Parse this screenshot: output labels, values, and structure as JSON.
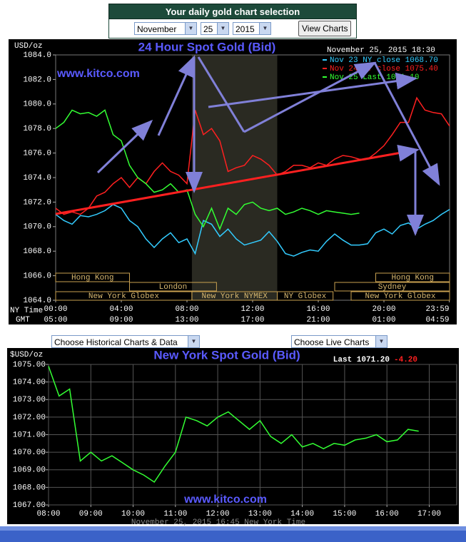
{
  "header": {
    "title": "Your daily gold chart selection",
    "month": "November",
    "day": "25",
    "year": "2015",
    "button": "View Charts"
  },
  "links": {
    "historical": "Choose Historical Charts & Data",
    "live": "Choose Live Charts"
  },
  "chart_data": [
    {
      "type": "line",
      "title": "24 Hour Spot Gold (Bid)",
      "watermark": "www.kitco.com",
      "timestamp": "November 25, 2015 18:30",
      "y_label": "USD/oz",
      "x_label": "NY Time",
      "x2_label": "GMT",
      "legend": "upper right",
      "grid": false,
      "background": "#000000",
      "x": [
        0,
        0.5,
        1,
        1.5,
        2,
        2.5,
        3,
        3.5,
        4,
        4.5,
        5,
        5.5,
        6,
        6.5,
        7,
        7.5,
        8,
        8.5,
        9,
        9.5,
        10,
        10.5,
        11,
        11.5,
        12,
        12.5,
        13,
        13.5,
        14,
        14.5,
        15,
        15.5,
        16,
        16.5,
        17,
        17.5,
        18,
        18.5,
        19,
        19.5,
        20,
        20.5,
        21,
        21.5,
        22,
        22.5,
        23,
        23.5,
        24
      ],
      "series": [
        {
          "name": "Nov 23 NY close 1068.70",
          "color": "#33ccff",
          "values": [
            1071.0,
            1070.5,
            1070.2,
            1070.9,
            1070.8,
            1071.0,
            1071.3,
            1071.8,
            1071.5,
            1070.5,
            1070.0,
            1069.0,
            1068.3,
            1069.0,
            1069.5,
            1068.7,
            1069.0,
            1067.8,
            1070.5,
            1070.2,
            1069.2,
            1069.8,
            1069.0,
            1068.5,
            1068.7,
            1068.9,
            1069.6,
            1068.8,
            1067.8,
            1067.6,
            1067.9,
            1068.1,
            1068.0,
            1068.8,
            1069.4,
            1068.9,
            1068.5,
            1068.5,
            1068.6,
            1069.5,
            1069.8,
            1069.4,
            1070.1,
            1070.3,
            1069.8,
            1070.2,
            1070.5,
            1071.0,
            1071.4
          ]
        },
        {
          "name": "Nov 24 NY close 1075.40",
          "color": "#ff2020",
          "values": [
            1071.5,
            1071.0,
            1071.2,
            1071.0,
            1071.5,
            1072.5,
            1072.8,
            1073.5,
            1074.0,
            1073.2,
            1074.0,
            1073.5,
            1074.5,
            1075.2,
            1074.5,
            1074.2,
            1073.5,
            1079.5,
            1077.5,
            1078.0,
            1077.0,
            1074.5,
            1074.8,
            1075.0,
            1075.8,
            1075.5,
            1075.0,
            1074.2,
            1074.5,
            1075.0,
            1075.0,
            1074.8,
            1075.2,
            1075.0,
            1075.5,
            1075.8,
            1075.7,
            1075.5,
            1075.5,
            1076.0,
            1076.6,
            1077.5,
            1078.5,
            1078.5,
            1080.5,
            1079.5,
            1079.3,
            1079.2,
            1078.2
          ]
        },
        {
          "name": "Nov 25 Last 1071.10",
          "color": "#33ff33",
          "values": [
            1078.0,
            1078.5,
            1079.5,
            1079.2,
            1079.3,
            1079.0,
            1079.5,
            1077.5,
            1077.0,
            1075.0,
            1074.0,
            1073.5,
            1072.8,
            1073.0,
            1073.5,
            1072.8,
            1073.0,
            1071.0,
            1070.0,
            1071.5,
            1069.8,
            1071.5,
            1071.0,
            1071.8,
            1072.0,
            1071.5,
            1071.3,
            1071.5,
            1071.0,
            1071.2,
            1071.5,
            1071.3,
            1071.0,
            1071.3,
            1071.2,
            1071.1,
            1071.0,
            1071.1,
            null,
            null,
            null,
            null,
            null,
            null,
            null,
            null,
            null,
            null,
            null
          ]
        }
      ],
      "xlim": [
        0,
        24
      ],
      "xticks": [
        {
          "value": 0,
          "label": "00:00"
        },
        {
          "value": 4,
          "label": "04:00"
        },
        {
          "value": 8,
          "label": "08:00"
        },
        {
          "value": 12,
          "label": "12:00"
        },
        {
          "value": 16,
          "label": "16:00"
        },
        {
          "value": 20,
          "label": "20:00"
        },
        {
          "value": 23.98,
          "label": "23:59"
        }
      ],
      "x2ticks": [
        {
          "value": 0,
          "label": "05:00"
        },
        {
          "value": 4,
          "label": "09:00"
        },
        {
          "value": 8,
          "label": "13:00"
        },
        {
          "value": 12,
          "label": "17:00"
        },
        {
          "value": 16,
          "label": "21:00"
        },
        {
          "value": 20,
          "label": "01:00"
        },
        {
          "value": 23.98,
          "label": "04:59"
        }
      ],
      "ylim": [
        1064,
        1084
      ],
      "yticks": [
        {
          "value": 1064,
          "label": "1064.0"
        },
        {
          "value": 1066,
          "label": "1066.0"
        },
        {
          "value": 1068,
          "label": "1068.0"
        },
        {
          "value": 1070,
          "label": "1070.0"
        },
        {
          "value": 1072,
          "label": "1072.0"
        },
        {
          "value": 1074,
          "label": "1074.0"
        },
        {
          "value": 1076,
          "label": "1076.0"
        },
        {
          "value": 1078,
          "label": "1078.0"
        },
        {
          "value": 1080,
          "label": "1080.0"
        },
        {
          "value": 1082,
          "label": "1082.0"
        },
        {
          "value": 1084,
          "label": "1084.0"
        }
      ],
      "sessions": [
        {
          "label": "Hong Kong",
          "start": 0,
          "end": 4.5
        },
        {
          "label": "London",
          "start": 4.5,
          "end": 9.8
        },
        {
          "label": "New York Globex",
          "start": 0,
          "end": 8.3
        },
        {
          "label": "New York NYMEX",
          "start": 8.3,
          "end": 13.5
        },
        {
          "label": "NY Globex",
          "start": 13.5,
          "end": 16.9
        },
        {
          "label": "Hong Kong",
          "start": 19.5,
          "end": 24
        },
        {
          "label": "Sydney",
          "start": 17.0,
          "end": 24
        },
        {
          "label": "New York Globex",
          "start": 18.0,
          "end": 24
        }
      ]
    },
    {
      "type": "line",
      "title": "New York Spot Gold (Bid)",
      "watermark": "www.kitco.com",
      "footer": "November 25, 2015 16:45 New York Time",
      "y_label": "$USD/oz",
      "last": "Last 1071.20",
      "change": "-4.20",
      "grid": true,
      "background": "#000000",
      "x": [
        8,
        8.25,
        8.5,
        8.75,
        9,
        9.25,
        9.5,
        9.75,
        10,
        10.25,
        10.5,
        10.75,
        11,
        11.25,
        11.5,
        11.75,
        12,
        12.25,
        12.5,
        12.75,
        13,
        13.25,
        13.5,
        13.75,
        14,
        14.25,
        14.5,
        14.75,
        15,
        15.25,
        15.5,
        15.75,
        16,
        16.25,
        16.5,
        16.75
      ],
      "series": [
        {
          "color": "#33ff33",
          "values": [
            1074.9,
            1073.2,
            1073.6,
            1069.5,
            1070.0,
            1069.5,
            1069.8,
            1069.4,
            1069.0,
            1068.7,
            1068.3,
            1069.2,
            1070.0,
            1072.0,
            1071.8,
            1071.5,
            1072.0,
            1072.3,
            1071.8,
            1071.3,
            1071.8,
            1070.9,
            1070.5,
            1071.0,
            1070.3,
            1070.5,
            1070.2,
            1070.5,
            1070.4,
            1070.7,
            1070.8,
            1071.0,
            1070.6,
            1070.7,
            1071.3,
            1071.2
          ]
        }
      ],
      "xlim": [
        8,
        17.65
      ],
      "xticks": [
        {
          "value": 8,
          "label": "08:00"
        },
        {
          "value": 9,
          "label": "09:00"
        },
        {
          "value": 10,
          "label": "10:00"
        },
        {
          "value": 11,
          "label": "11:00"
        },
        {
          "value": 12,
          "label": "12:00"
        },
        {
          "value": 13,
          "label": "13:00"
        },
        {
          "value": 14,
          "label": "14:00"
        },
        {
          "value": 15,
          "label": "15:00"
        },
        {
          "value": 16,
          "label": "16:00"
        },
        {
          "value": 17,
          "label": "17:00"
        }
      ],
      "ylim": [
        1067,
        1075
      ],
      "yticks": [
        {
          "value": 1067,
          "label": "1067.00"
        },
        {
          "value": 1068,
          "label": "1068.00"
        },
        {
          "value": 1069,
          "label": "1069.00"
        },
        {
          "value": 1070,
          "label": "1070.00"
        },
        {
          "value": 1071,
          "label": "1071.00"
        },
        {
          "value": 1072,
          "label": "1072.00"
        },
        {
          "value": 1073,
          "label": "1073.00"
        },
        {
          "value": 1074,
          "label": "1074.00"
        },
        {
          "value": 1075,
          "label": "1075.00"
        }
      ]
    }
  ]
}
